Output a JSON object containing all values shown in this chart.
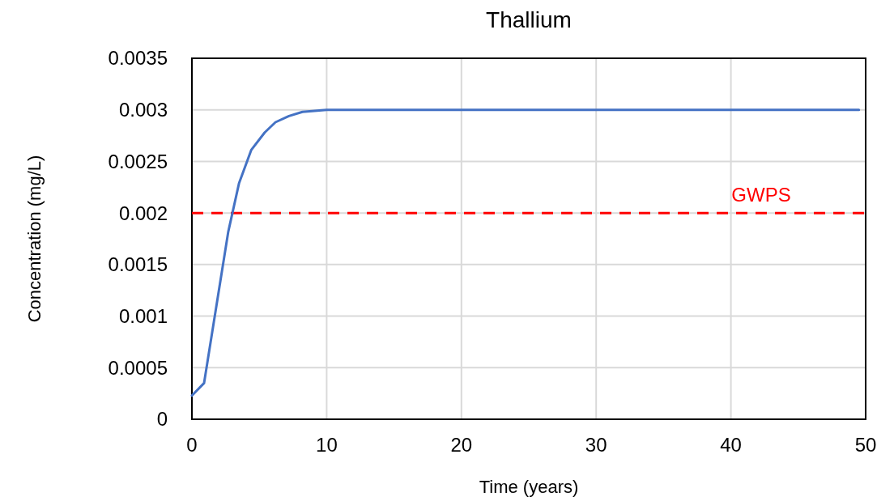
{
  "chart_data": {
    "type": "line",
    "title": "Thallium",
    "xlabel": "Time (years)",
    "ylabel": "Concentration (mg/L)",
    "series": [
      {
        "color": "#4472c4",
        "x": [
          0,
          0.9,
          2.7,
          3.5,
          4.4,
          5.4,
          6.2,
          7.2,
          8.2,
          10,
          11,
          49.5
        ],
        "values": [
          0.00023,
          0.00035,
          0.00182,
          0.00229,
          0.00261,
          0.00278,
          0.00288,
          0.00294,
          0.00298,
          0.003,
          0.003,
          0.003
        ]
      }
    ],
    "xlim": [
      0,
      50
    ],
    "xticks": [
      0,
      10,
      20,
      30,
      40,
      50
    ],
    "ylim": [
      0,
      0.0035
    ],
    "yticks": [
      0,
      0.0005,
      0.001,
      0.0015,
      0.002,
      0.0025,
      0.003,
      0.0035
    ],
    "grid": true,
    "line_style": "solid",
    "marker": "none",
    "ref_lines": [
      {
        "axis": "y",
        "value": 0.002,
        "label": "GWPS",
        "color": "#ff0000",
        "line_style": "dashed"
      }
    ]
  }
}
